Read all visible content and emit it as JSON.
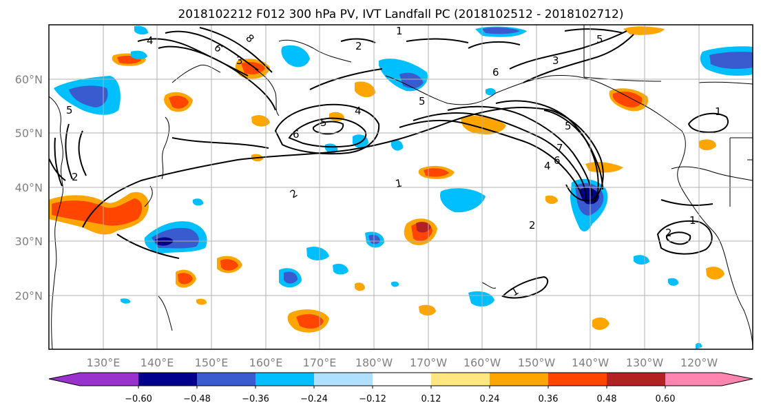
{
  "title": "2018102212 F012 300 hPa PV, IVT Landfall PC (2018102512 - 2018102712)",
  "map": {
    "lon_labels": [
      "130°E",
      "140°E",
      "150°E",
      "160°E",
      "170°E",
      "180°W",
      "170°W",
      "160°W",
      "150°W",
      "140°W",
      "130°W",
      "120°W"
    ],
    "lat_labels": [
      "60°N",
      "50°N",
      "40°N",
      "30°N",
      "20°N"
    ],
    "contour_labels": [
      "8",
      "6",
      "4",
      "5",
      "3",
      "2",
      "1",
      "5",
      "4",
      "6",
      "5",
      "2",
      "1",
      "3",
      "5",
      "6",
      "5",
      "7",
      "6",
      "4",
      "1",
      "1",
      "2",
      "2",
      "2",
      "1"
    ],
    "colors": {
      "contour": "#000000",
      "grid": "#b0b0b0",
      "coast": "#000000"
    }
  },
  "colorbar": {
    "tick_labels": [
      "−0.60",
      "−0.48",
      "−0.36",
      "−0.24",
      "−0.12",
      "0.12",
      "0.24",
      "0.36",
      "0.48",
      "0.60"
    ],
    "colors": [
      "#9932cc",
      "#00008b",
      "#3a5bd0",
      "#00bfff",
      "#b0e0ff",
      "#ffffff",
      "#ffe680",
      "#ffa500",
      "#ff4500",
      "#b22222",
      "#ff85b0"
    ]
  }
}
